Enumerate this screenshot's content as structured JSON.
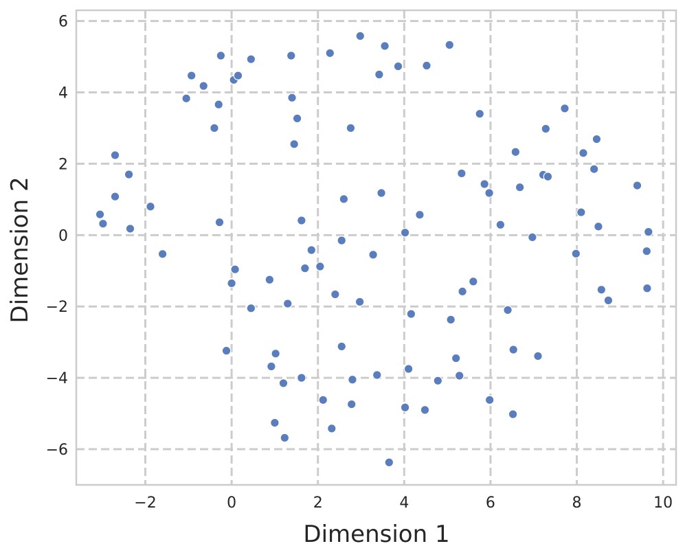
{
  "chart_data": {
    "type": "scatter",
    "title": "",
    "xlabel": "Dimension 1",
    "ylabel": "Dimension 2",
    "xlim": [
      -3.6,
      10.3
    ],
    "ylim": [
      -7.0,
      6.3
    ],
    "xticks": [
      -2,
      0,
      2,
      4,
      6,
      8,
      10
    ],
    "yticks": [
      -6,
      -4,
      -2,
      0,
      2,
      4,
      6
    ],
    "xtick_labels": [
      "−2",
      "0",
      "2",
      "4",
      "6",
      "8",
      "10"
    ],
    "ytick_labels": [
      "−6",
      "−4",
      "−2",
      "0",
      "2",
      "4",
      "6"
    ],
    "grid": true,
    "grid_style": "dashed",
    "marker_color": "#5a7dbd",
    "points": [
      [
        -3.05,
        0.58
      ],
      [
        -2.98,
        0.32
      ],
      [
        -2.7,
        2.24
      ],
      [
        -2.7,
        1.08
      ],
      [
        -2.38,
        1.7
      ],
      [
        -2.35,
        0.18
      ],
      [
        -1.88,
        0.8
      ],
      [
        -1.6,
        -0.53
      ],
      [
        -1.05,
        3.83
      ],
      [
        -0.93,
        4.47
      ],
      [
        -0.65,
        4.18
      ],
      [
        -0.4,
        3.0
      ],
      [
        -0.3,
        3.66
      ],
      [
        -0.28,
        0.36
      ],
      [
        -0.25,
        5.03
      ],
      [
        -0.12,
        -3.24
      ],
      [
        0.0,
        -1.35
      ],
      [
        0.05,
        4.35
      ],
      [
        0.08,
        -0.96
      ],
      [
        0.15,
        4.47
      ],
      [
        0.45,
        4.93
      ],
      [
        0.45,
        -2.05
      ],
      [
        0.88,
        -1.25
      ],
      [
        0.92,
        -3.68
      ],
      [
        1.0,
        -5.26
      ],
      [
        1.02,
        -3.32
      ],
      [
        1.2,
        -4.15
      ],
      [
        1.23,
        -5.68
      ],
      [
        1.3,
        -1.92
      ],
      [
        1.38,
        5.03
      ],
      [
        1.4,
        3.85
      ],
      [
        1.45,
        2.55
      ],
      [
        1.52,
        3.27
      ],
      [
        1.62,
        -4.0
      ],
      [
        1.62,
        0.41
      ],
      [
        1.7,
        -0.93
      ],
      [
        1.85,
        -0.42
      ],
      [
        2.05,
        -0.88
      ],
      [
        2.12,
        -4.62
      ],
      [
        2.28,
        5.1
      ],
      [
        2.32,
        -5.42
      ],
      [
        2.4,
        -1.66
      ],
      [
        2.55,
        -0.15
      ],
      [
        2.55,
        -3.12
      ],
      [
        2.6,
        1.01
      ],
      [
        2.76,
        3.0
      ],
      [
        2.78,
        -4.74
      ],
      [
        2.8,
        -4.05
      ],
      [
        2.97,
        -1.87
      ],
      [
        2.98,
        5.58
      ],
      [
        3.28,
        -0.55
      ],
      [
        3.37,
        -3.92
      ],
      [
        3.42,
        4.5
      ],
      [
        3.47,
        1.18
      ],
      [
        3.55,
        5.3
      ],
      [
        3.65,
        -6.37
      ],
      [
        3.86,
        4.73
      ],
      [
        4.02,
        0.07
      ],
      [
        4.02,
        -4.83
      ],
      [
        4.1,
        -3.75
      ],
      [
        4.16,
        -2.21
      ],
      [
        4.36,
        0.57
      ],
      [
        4.48,
        -4.9
      ],
      [
        4.52,
        4.75
      ],
      [
        4.78,
        -4.08
      ],
      [
        5.05,
        5.33
      ],
      [
        5.08,
        -2.37
      ],
      [
        5.2,
        -3.45
      ],
      [
        5.28,
        -3.94
      ],
      [
        5.33,
        1.73
      ],
      [
        5.35,
        -1.58
      ],
      [
        5.6,
        -1.3
      ],
      [
        5.75,
        3.4
      ],
      [
        5.86,
        1.43
      ],
      [
        5.97,
        1.18
      ],
      [
        5.98,
        -4.62
      ],
      [
        6.23,
        0.29
      ],
      [
        6.4,
        -2.1
      ],
      [
        6.52,
        -5.02
      ],
      [
        6.53,
        -3.21
      ],
      [
        6.58,
        2.33
      ],
      [
        6.68,
        1.34
      ],
      [
        6.97,
        -0.06
      ],
      [
        7.1,
        -3.39
      ],
      [
        7.22,
        1.69
      ],
      [
        7.28,
        2.98
      ],
      [
        7.33,
        1.64
      ],
      [
        7.72,
        3.55
      ],
      [
        7.98,
        -0.52
      ],
      [
        8.1,
        0.64
      ],
      [
        8.15,
        2.3
      ],
      [
        8.4,
        1.85
      ],
      [
        8.46,
        2.69
      ],
      [
        8.5,
        0.24
      ],
      [
        8.57,
        -1.53
      ],
      [
        8.73,
        -1.83
      ],
      [
        9.4,
        1.39
      ],
      [
        9.62,
        -0.45
      ],
      [
        9.63,
        -1.49
      ],
      [
        9.66,
        0.09
      ]
    ]
  }
}
